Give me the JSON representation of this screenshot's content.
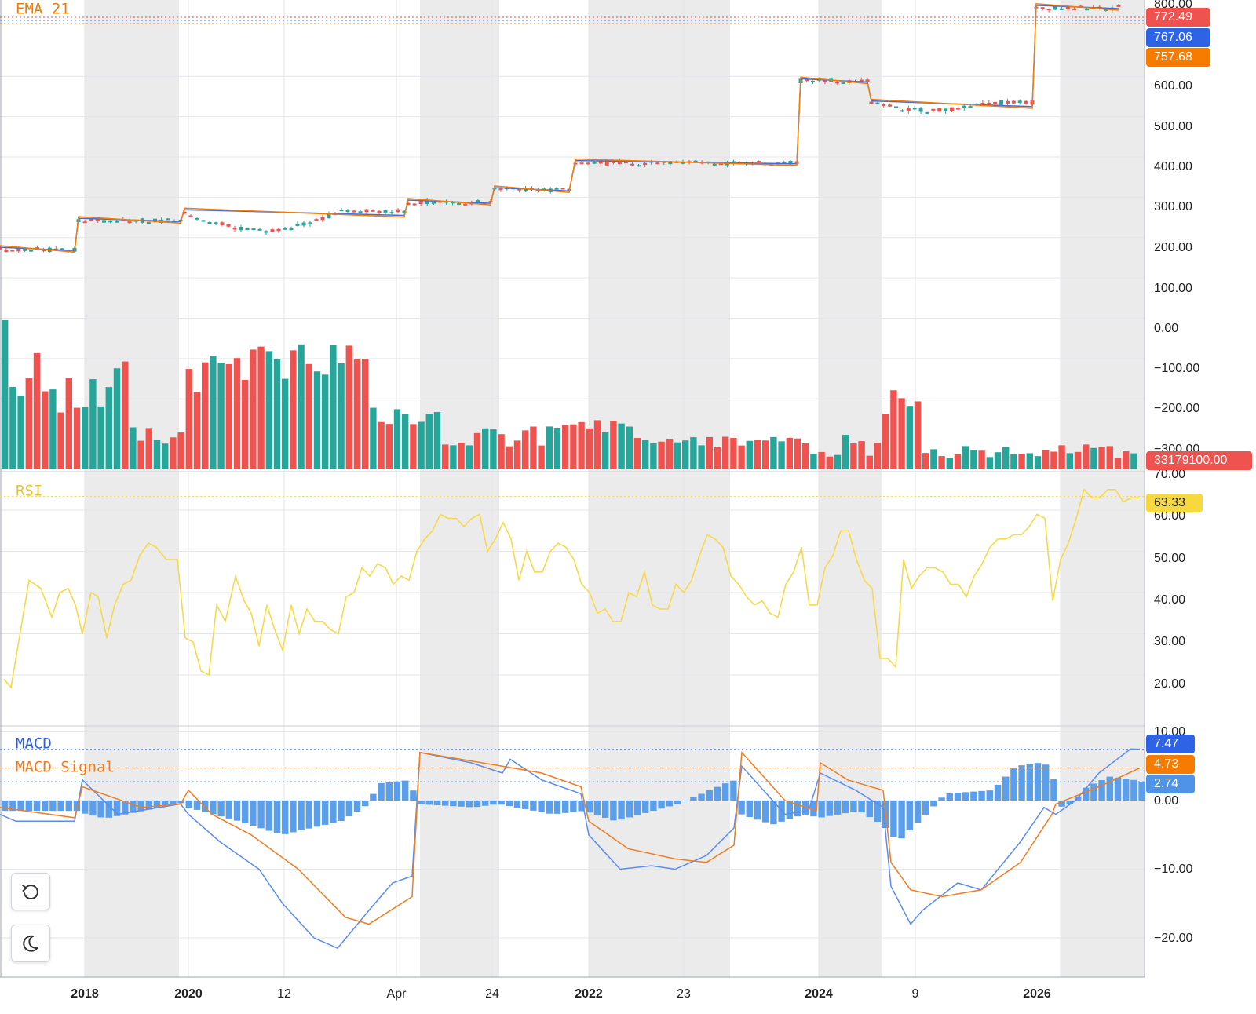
{
  "chart_data": {
    "type": "candlestick",
    "panes": [
      "price",
      "volume",
      "rsi",
      "macd"
    ],
    "x_axis": {
      "tick_labels": [
        {
          "label": "2018",
          "bold": true
        },
        {
          "label": "2020",
          "bold": true
        },
        {
          "label": "12",
          "bold": false
        },
        {
          "label": "Apr",
          "bold": false
        },
        {
          "label": "24",
          "bold": false
        },
        {
          "label": "2022",
          "bold": true
        },
        {
          "label": "23",
          "bold": false
        },
        {
          "label": "2024",
          "bold": true
        },
        {
          "label": "9",
          "bold": false
        },
        {
          "label": "2026",
          "bold": true
        }
      ]
    },
    "price": {
      "indicator_label": "EMA 21",
      "y_ticks": [
        "800.00",
        "600.00",
        "500.00",
        "400.00",
        "300.00",
        "200.00",
        "100.00",
        "0.00",
        "−100.00",
        "−200.00",
        "−300.00"
      ],
      "ylim": [
        -350,
        800
      ],
      "last_price": "772.49",
      "ema_short_last": "767.06",
      "ema21_last": "757.68",
      "segments": [
        {
          "start": 0,
          "end": 95,
          "level": 170
        },
        {
          "start": 100,
          "end": 230,
          "level": 242
        },
        {
          "start": 235,
          "end": 515,
          "level": 265,
          "shape": "dip",
          "low": 218
        },
        {
          "start": 520,
          "end": 625,
          "level": 287
        },
        {
          "start": 630,
          "end": 725,
          "level": 318
        },
        {
          "start": 733,
          "end": 1015,
          "level": 385
        },
        {
          "start": 1020,
          "end": 1105,
          "level": 588
        },
        {
          "start": 1110,
          "end": 1315,
          "level": 535,
          "shape": "dip",
          "low": 515
        },
        {
          "start": 1320,
          "end": 1425,
          "level": 770
        }
      ]
    },
    "volume": {
      "last_value": "33179100.00",
      "colors": {
        "up": "#26a69a",
        "down": "#ef5350"
      }
    },
    "rsi": {
      "label": "RSI",
      "y_ticks": [
        "70.00",
        "60.00",
        "50.00",
        "40.00",
        "30.00",
        "20.00"
      ],
      "ylim": [
        12,
        72
      ],
      "last": "63.33",
      "values": [
        {
          "x": 5,
          "y": 19
        },
        {
          "x": 14,
          "y": 17
        },
        {
          "x": 37,
          "y": 43
        },
        {
          "x": 52,
          "y": 41
        },
        {
          "x": 66,
          "y": 34
        },
        {
          "x": 76,
          "y": 40
        },
        {
          "x": 87,
          "y": 41
        },
        {
          "x": 96,
          "y": 37
        },
        {
          "x": 105,
          "y": 30
        },
        {
          "x": 116,
          "y": 40
        },
        {
          "x": 125,
          "y": 39
        },
        {
          "x": 136,
          "y": 29
        },
        {
          "x": 146,
          "y": 37
        },
        {
          "x": 157,
          "y": 42
        },
        {
          "x": 167,
          "y": 43
        },
        {
          "x": 178,
          "y": 49
        },
        {
          "x": 189,
          "y": 52
        },
        {
          "x": 199,
          "y": 51
        },
        {
          "x": 212,
          "y": 48
        },
        {
          "x": 226,
          "y": 48
        },
        {
          "x": 236,
          "y": 29
        },
        {
          "x": 246,
          "y": 28
        },
        {
          "x": 256,
          "y": 21
        },
        {
          "x": 266,
          "y": 20
        },
        {
          "x": 276,
          "y": 37
        },
        {
          "x": 287,
          "y": 33
        },
        {
          "x": 300,
          "y": 44
        },
        {
          "x": 311,
          "y": 38
        },
        {
          "x": 320,
          "y": 35
        },
        {
          "x": 330,
          "y": 27
        },
        {
          "x": 340,
          "y": 37
        },
        {
          "x": 350,
          "y": 31
        },
        {
          "x": 360,
          "y": 26
        },
        {
          "x": 371,
          "y": 37
        },
        {
          "x": 381,
          "y": 30
        },
        {
          "x": 391,
          "y": 36
        },
        {
          "x": 401,
          "y": 33
        },
        {
          "x": 411,
          "y": 33
        },
        {
          "x": 421,
          "y": 31
        },
        {
          "x": 431,
          "y": 30
        },
        {
          "x": 441,
          "y": 39
        },
        {
          "x": 451,
          "y": 40
        },
        {
          "x": 461,
          "y": 46
        },
        {
          "x": 471,
          "y": 44
        },
        {
          "x": 481,
          "y": 47
        },
        {
          "x": 491,
          "y": 46
        },
        {
          "x": 501,
          "y": 42
        },
        {
          "x": 511,
          "y": 44
        },
        {
          "x": 521,
          "y": 43
        },
        {
          "x": 531,
          "y": 50
        },
        {
          "x": 541,
          "y": 53
        },
        {
          "x": 551,
          "y": 55
        },
        {
          "x": 561,
          "y": 59
        },
        {
          "x": 571,
          "y": 58
        },
        {
          "x": 581,
          "y": 58
        },
        {
          "x": 591,
          "y": 56
        },
        {
          "x": 601,
          "y": 58
        },
        {
          "x": 611,
          "y": 59
        },
        {
          "x": 621,
          "y": 50
        },
        {
          "x": 631,
          "y": 53
        },
        {
          "x": 641,
          "y": 57
        },
        {
          "x": 651,
          "y": 53
        },
        {
          "x": 661,
          "y": 43
        },
        {
          "x": 671,
          "y": 50
        },
        {
          "x": 681,
          "y": 45
        },
        {
          "x": 691,
          "y": 45
        },
        {
          "x": 701,
          "y": 50
        },
        {
          "x": 711,
          "y": 52
        },
        {
          "x": 721,
          "y": 51
        },
        {
          "x": 731,
          "y": 48
        },
        {
          "x": 741,
          "y": 42
        },
        {
          "x": 751,
          "y": 40
        },
        {
          "x": 761,
          "y": 35
        },
        {
          "x": 771,
          "y": 36
        },
        {
          "x": 781,
          "y": 33
        },
        {
          "x": 791,
          "y": 33
        },
        {
          "x": 801,
          "y": 40
        },
        {
          "x": 811,
          "y": 39
        },
        {
          "x": 821,
          "y": 45
        },
        {
          "x": 831,
          "y": 37
        },
        {
          "x": 841,
          "y": 36
        },
        {
          "x": 851,
          "y": 36
        },
        {
          "x": 861,
          "y": 42
        },
        {
          "x": 871,
          "y": 40
        },
        {
          "x": 881,
          "y": 43
        },
        {
          "x": 891,
          "y": 49
        },
        {
          "x": 901,
          "y": 54
        },
        {
          "x": 911,
          "y": 53
        },
        {
          "x": 921,
          "y": 51
        },
        {
          "x": 931,
          "y": 44
        },
        {
          "x": 941,
          "y": 42
        },
        {
          "x": 951,
          "y": 39
        },
        {
          "x": 961,
          "y": 37
        },
        {
          "x": 971,
          "y": 38
        },
        {
          "x": 981,
          "y": 35
        },
        {
          "x": 991,
          "y": 34
        },
        {
          "x": 1001,
          "y": 42
        },
        {
          "x": 1011,
          "y": 45
        },
        {
          "x": 1021,
          "y": 51
        },
        {
          "x": 1031,
          "y": 37
        },
        {
          "x": 1041,
          "y": 37
        },
        {
          "x": 1051,
          "y": 46
        },
        {
          "x": 1061,
          "y": 49
        },
        {
          "x": 1071,
          "y": 55
        },
        {
          "x": 1081,
          "y": 55
        },
        {
          "x": 1091,
          "y": 48
        },
        {
          "x": 1101,
          "y": 43
        },
        {
          "x": 1111,
          "y": 41
        },
        {
          "x": 1121,
          "y": 24
        },
        {
          "x": 1131,
          "y": 24
        },
        {
          "x": 1141,
          "y": 22
        },
        {
          "x": 1151,
          "y": 48
        },
        {
          "x": 1161,
          "y": 41
        },
        {
          "x": 1171,
          "y": 44
        },
        {
          "x": 1181,
          "y": 46
        },
        {
          "x": 1191,
          "y": 46
        },
        {
          "x": 1201,
          "y": 45
        },
        {
          "x": 1211,
          "y": 42
        },
        {
          "x": 1221,
          "y": 42
        },
        {
          "x": 1231,
          "y": 39
        },
        {
          "x": 1241,
          "y": 44
        },
        {
          "x": 1251,
          "y": 47
        },
        {
          "x": 1261,
          "y": 51
        },
        {
          "x": 1271,
          "y": 53
        },
        {
          "x": 1281,
          "y": 53
        },
        {
          "x": 1291,
          "y": 54
        },
        {
          "x": 1301,
          "y": 54
        },
        {
          "x": 1311,
          "y": 56
        },
        {
          "x": 1321,
          "y": 59
        },
        {
          "x": 1331,
          "y": 58
        },
        {
          "x": 1341,
          "y": 38
        },
        {
          "x": 1351,
          "y": 48
        },
        {
          "x": 1361,
          "y": 52
        },
        {
          "x": 1371,
          "y": 58
        },
        {
          "x": 1381,
          "y": 65
        },
        {
          "x": 1391,
          "y": 63
        },
        {
          "x": 1401,
          "y": 63
        },
        {
          "x": 1411,
          "y": 65
        },
        {
          "x": 1421,
          "y": 65
        },
        {
          "x": 1431,
          "y": 62
        },
        {
          "x": 1441,
          "y": 63
        },
        {
          "x": 1451,
          "y": 63
        }
      ]
    },
    "macd": {
      "labels": [
        "MACD",
        "MACD Signal"
      ],
      "y_ticks": [
        "10.00",
        "0.00",
        "−10.00",
        "−20.00"
      ],
      "ylim": [
        -25,
        10.5
      ],
      "last_macd": "7.47",
      "last_signal": "4.73",
      "last_hist": "2.74"
    },
    "colors": {
      "ema21": "#f57c00",
      "ema_short": "#3d6ee8",
      "rsi": "#f7d94a",
      "macd": "#5b8cf0",
      "signal": "#ef7d22",
      "hist": "#5b9ee9",
      "up": "#26a69a",
      "down": "#ef5350",
      "shade": "#ebebeb",
      "grid": "#e4e6eb"
    }
  },
  "controls": {
    "reset_icon": "reset-icon",
    "theme_icon": "moon-icon"
  }
}
